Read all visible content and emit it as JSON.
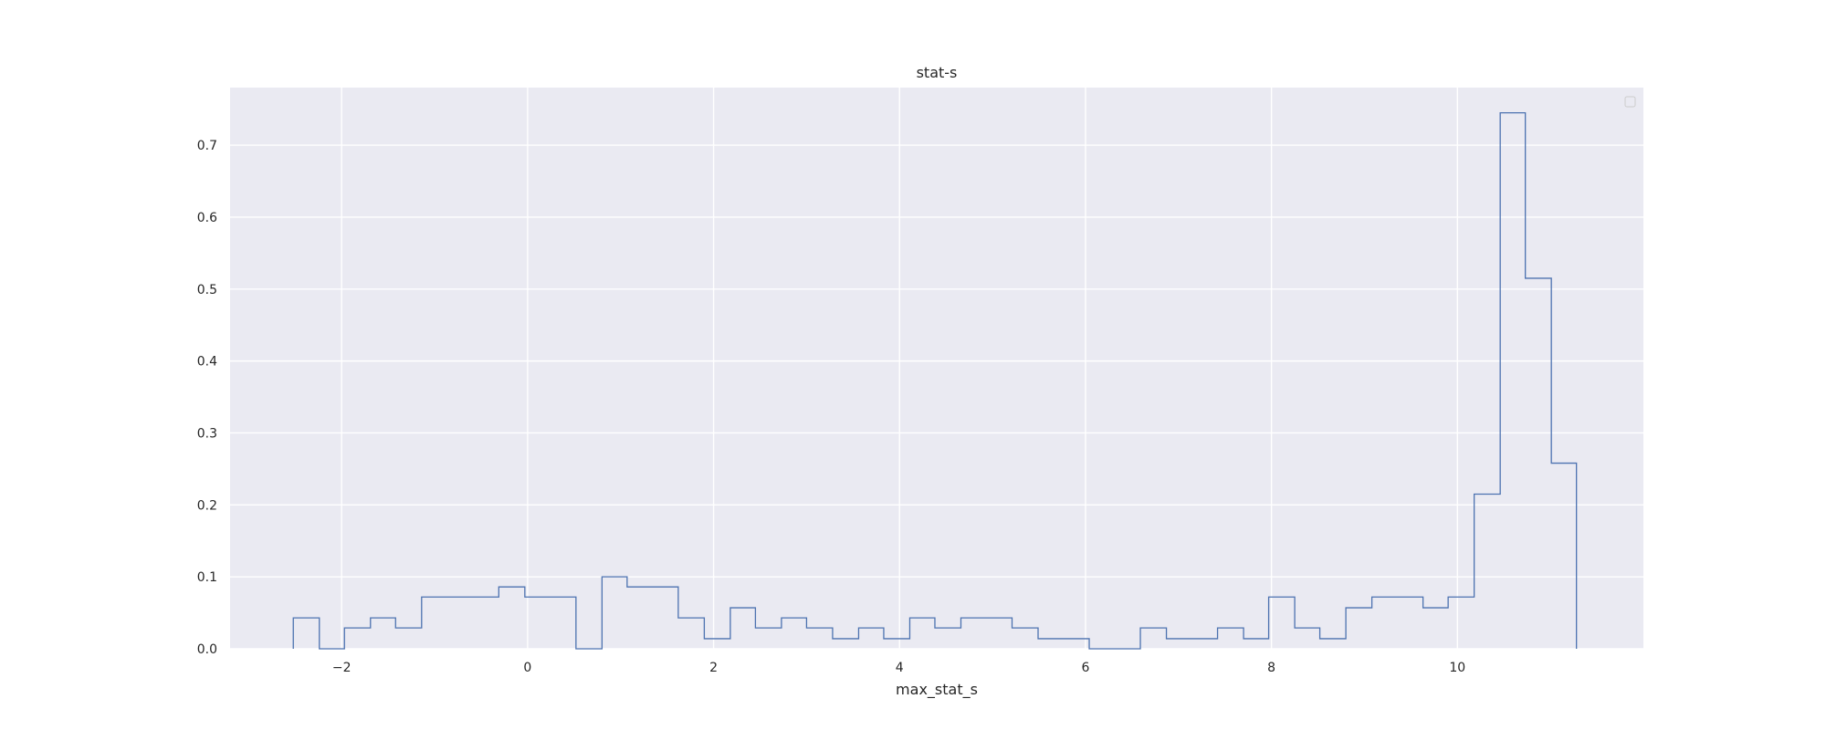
{
  "chart_data": {
    "type": "histogram-step",
    "title": "stat-s",
    "xlabel": "max_stat_s",
    "ylabel": "",
    "xlim": [
      -3.2,
      12.0
    ],
    "ylim": [
      0,
      0.78
    ],
    "xticks": [
      -2,
      0,
      2,
      4,
      6,
      8,
      10
    ],
    "xtick_labels": [
      "−2",
      "0",
      "2",
      "4",
      "6",
      "8",
      "10"
    ],
    "yticks": [
      0.0,
      0.1,
      0.2,
      0.3,
      0.4,
      0.5,
      0.6,
      0.7
    ],
    "ytick_labels": [
      "0.0",
      "0.1",
      "0.2",
      "0.3",
      "0.4",
      "0.5",
      "0.6",
      "0.7"
    ],
    "grid": true,
    "legend": "top-right",
    "series_color": "#4c72b0",
    "bin_edges": [
      -2.52,
      -2.24,
      -1.97,
      -1.69,
      -1.42,
      -1.14,
      -0.86,
      -0.59,
      -0.31,
      -0.03,
      0.24,
      0.52,
      0.8,
      1.07,
      1.35,
      1.62,
      1.9,
      2.18,
      2.45,
      2.73,
      3.0,
      3.28,
      3.56,
      3.83,
      4.11,
      4.38,
      4.66,
      4.94,
      5.21,
      5.49,
      5.76,
      6.04,
      6.32,
      6.59,
      6.87,
      7.14,
      7.42,
      7.7,
      7.97,
      8.25,
      8.52,
      8.8,
      9.08,
      9.35,
      9.63,
      9.9,
      10.18,
      10.46,
      10.73,
      11.01,
      11.28
    ],
    "values": [
      0.043,
      0.0,
      0.029,
      0.043,
      0.029,
      0.072,
      0.072,
      0.072,
      0.086,
      0.072,
      0.072,
      0.0,
      0.1,
      0.086,
      0.086,
      0.043,
      0.014,
      0.057,
      0.029,
      0.043,
      0.029,
      0.014,
      0.029,
      0.014,
      0.043,
      0.029,
      0.043,
      0.043,
      0.029,
      0.014,
      0.014,
      0.0,
      0.0,
      0.029,
      0.014,
      0.014,
      0.029,
      0.014,
      0.072,
      0.029,
      0.014,
      0.057,
      0.072,
      0.072,
      0.057,
      0.072,
      0.215,
      0.745,
      0.515,
      0.258
    ]
  }
}
